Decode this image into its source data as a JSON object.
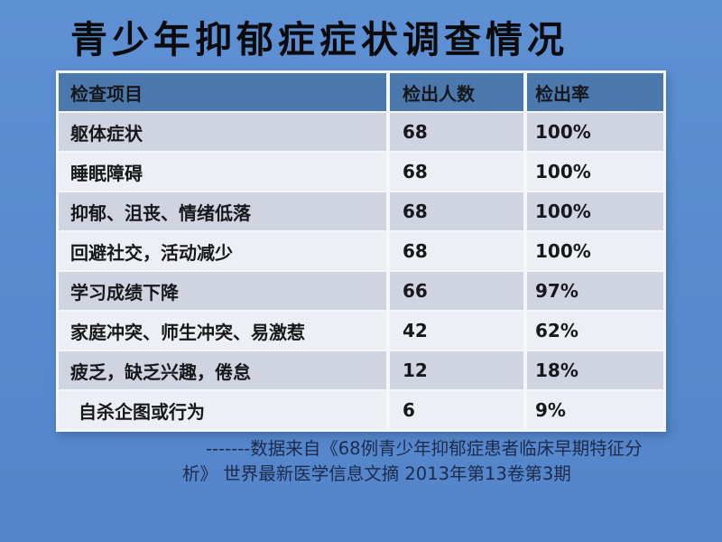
{
  "slide": {
    "title": "青少年抑郁症症状调查情况"
  },
  "table": {
    "columns": [
      "检查项目",
      "检出人数",
      "检出率"
    ],
    "rows": [
      {
        "item": "躯体症状",
        "count": "68",
        "rate": "100%"
      },
      {
        "item": "睡眠障碍",
        "count": "68",
        "rate": "100%"
      },
      {
        "item": "抑郁、沮丧、情绪低落",
        "count": "68",
        "rate": "100%"
      },
      {
        "item": "回避社交，活动减少",
        "count": "68",
        "rate": "100%"
      },
      {
        "item": "学习成绩下降",
        "count": "66",
        "rate": "97%"
      },
      {
        "item": "家庭冲突、师生冲突、易激惹",
        "count": "42",
        "rate": "62%"
      },
      {
        "item": "疲乏，缺乏兴趣，倦怠",
        "count": "12",
        "rate": "18%"
      },
      {
        "item": "自杀企图或行为",
        "count": "6",
        "rate": "9%"
      }
    ]
  },
  "footnote": {
    "line1": "-------数据来自《68例青少年抑郁症患者临床早期特征分",
    "line2": "析》 世界最新医学信息文摘 2013年第13卷第3期"
  },
  "colors": {
    "bg_top": "#5E90D4",
    "bg_bottom": "#5484C9",
    "header_bg": "#4B79AE",
    "header_text": "#F5F8FC",
    "row_odd": "#CFD4E0",
    "row_even": "#EDEFF5",
    "border_color": "#F4F7FA",
    "title_color": "#0B0B0D",
    "body_text": "#17181C",
    "footnote_color": "#1C2B4A"
  }
}
